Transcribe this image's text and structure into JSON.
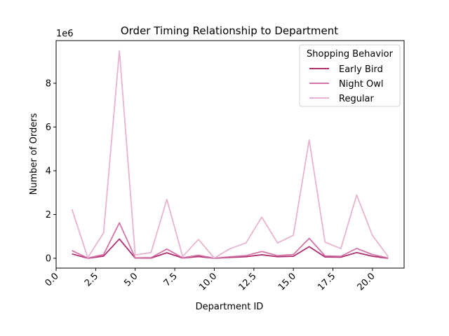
{
  "chart_data": {
    "type": "line",
    "title": "Order Timing Relationship to Department",
    "xlabel": "Department ID",
    "ylabel": "Number of Orders",
    "y_multiplier_label": "1e6",
    "xlim": [
      0,
      22
    ],
    "ylim": [
      -0.45,
      9.95
    ],
    "x_ticks": [
      0.0,
      2.5,
      5.0,
      7.5,
      10.0,
      12.5,
      15.0,
      17.5,
      20.0
    ],
    "x_tick_labels": [
      "0.0",
      "2.5",
      "5.0",
      "7.5",
      "10.0",
      "12.5",
      "15.0",
      "17.5",
      "20.0"
    ],
    "y_ticks": [
      0,
      2,
      4,
      6,
      8
    ],
    "y_tick_labels": [
      "0",
      "2",
      "4",
      "6",
      "8"
    ],
    "grid": false,
    "legend": {
      "title": "Shopping Behavior",
      "placement": "top-right"
    },
    "x": [
      1,
      2,
      3,
      4,
      5,
      6,
      7,
      8,
      9,
      10,
      11,
      12,
      13,
      14,
      15,
      16,
      17,
      18,
      19,
      20,
      21
    ],
    "series": [
      {
        "name": "Early Bird",
        "color": "#ad2d6f",
        "values": [
          0.2,
          0.0,
          0.1,
          0.88,
          0.01,
          0.01,
          0.25,
          0.01,
          0.08,
          0.0,
          0.04,
          0.07,
          0.16,
          0.07,
          0.09,
          0.53,
          0.06,
          0.05,
          0.26,
          0.09,
          0.0
        ]
      },
      {
        "name": "Night Owl",
        "color": "#d474a7",
        "values": [
          0.35,
          0.01,
          0.17,
          1.62,
          0.02,
          0.03,
          0.42,
          0.02,
          0.14,
          0.0,
          0.07,
          0.12,
          0.31,
          0.12,
          0.17,
          0.91,
          0.11,
          0.09,
          0.45,
          0.17,
          0.01
        ]
      },
      {
        "name": "Regular",
        "color": "#e7b4cf",
        "values": [
          2.24,
          0.03,
          1.16,
          9.49,
          0.15,
          0.26,
          2.69,
          0.08,
          0.86,
          0.01,
          0.44,
          0.7,
          1.88,
          0.7,
          1.05,
          5.41,
          0.74,
          0.44,
          2.89,
          1.04,
          0.07
        ]
      }
    ]
  }
}
